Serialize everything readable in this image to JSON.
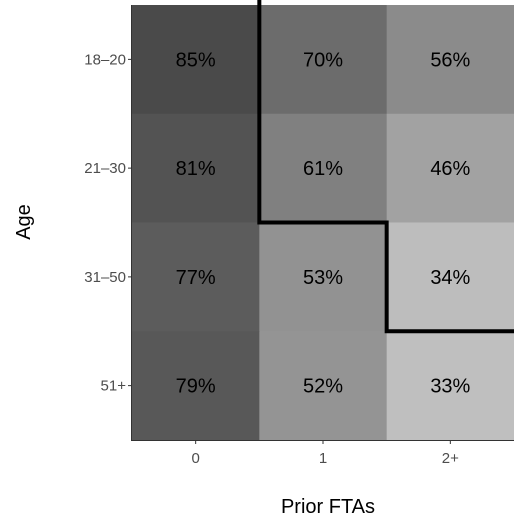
{
  "chart_data": {
    "type": "heatmap",
    "xlabel": "Prior FTAs",
    "ylabel": "Age",
    "x_categories": [
      "0",
      "1",
      "2+"
    ],
    "y_categories": [
      "18–20",
      "21–30",
      "31–50",
      "51+"
    ],
    "values": [
      [
        85,
        70,
        56
      ],
      [
        81,
        61,
        46
      ],
      [
        77,
        53,
        34
      ],
      [
        79,
        52,
        33
      ]
    ],
    "value_labels": [
      [
        "85%",
        "70%",
        "56%"
      ],
      [
        "81%",
        "61%",
        "46%"
      ],
      [
        "77%",
        "53%",
        "34%"
      ],
      [
        "79%",
        "52%",
        "33%"
      ]
    ],
    "color_scale": {
      "low_value": 33,
      "high_value": 85,
      "low_color": "#bfbfbf",
      "high_color": "#4a4a4a"
    },
    "boundary_line": {
      "color": "#000000",
      "description": "step line separating cells"
    },
    "grid": false
  }
}
